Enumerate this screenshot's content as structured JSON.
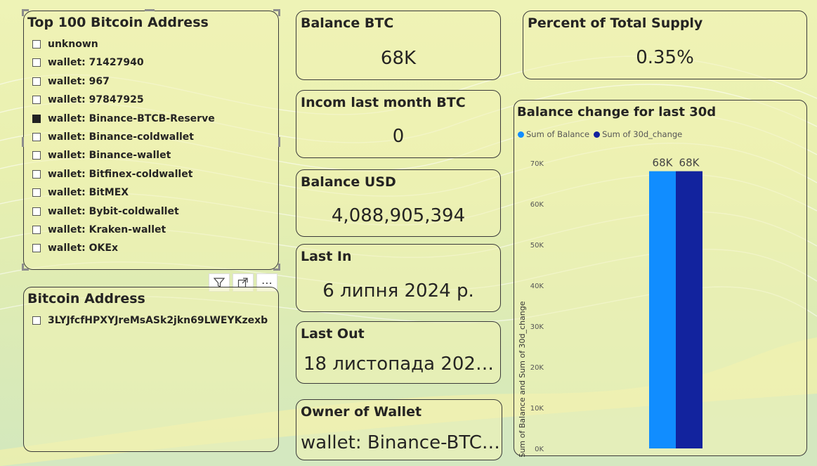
{
  "slicer_top100": {
    "title": "Top 100 Bitcoin Address",
    "items": [
      {
        "label": "unknown",
        "checked": false
      },
      {
        "label": "wallet: 71427940",
        "checked": false
      },
      {
        "label": "wallet: 967",
        "checked": false
      },
      {
        "label": "wallet: 97847925",
        "checked": false
      },
      {
        "label": "wallet: Binance-BTCB-Reserve",
        "checked": true
      },
      {
        "label": "wallet: Binance-coldwallet",
        "checked": false
      },
      {
        "label": "wallet: Binance-wallet",
        "checked": false
      },
      {
        "label": "wallet: Bitfinex-coldwallet",
        "checked": false
      },
      {
        "label": "wallet: BitMEX",
        "checked": false
      },
      {
        "label": "wallet: Bybit-coldwallet",
        "checked": false
      },
      {
        "label": "wallet: Kraken-wallet",
        "checked": false
      },
      {
        "label": "wallet: OKEx",
        "checked": false
      }
    ]
  },
  "visual_header": {
    "filter_icon": "filter-icon",
    "focus_icon": "focus-mode-icon",
    "more_label": "⋯"
  },
  "slicer_address": {
    "title": "Bitcoin Address",
    "items": [
      {
        "label": "3LYJfcfHPXYJreMsASk2jkn69LWEYKzexb",
        "checked": false
      }
    ]
  },
  "kpis": {
    "balance_btc": {
      "title": "Balance BTC",
      "value": "68K"
    },
    "income_last_month": {
      "title": "Incom last month BTC",
      "value": "0"
    },
    "balance_usd": {
      "title": "Balance USD",
      "value": "4,088,905,394"
    },
    "last_in": {
      "title": "Last In",
      "value": "6 липня 2024 р."
    },
    "last_out": {
      "title": "Last Out",
      "value": "18 листопада 202…"
    },
    "owner": {
      "title": "Owner of Wallet",
      "value": "wallet: Binance-BTC…"
    },
    "percent_supply": {
      "title": "Percent of Total Supply",
      "value": "0.35%"
    }
  },
  "chart_data": {
    "type": "bar",
    "title": "Balance change for last 30d",
    "ylabel": "Sum of Balance and Sum of 30d_change",
    "xlabel": "",
    "ylim": [
      0,
      70000
    ],
    "yticks": [
      0,
      10000,
      20000,
      30000,
      40000,
      50000,
      60000,
      70000
    ],
    "ytick_labels": [
      "0K",
      "10K",
      "20K",
      "30K",
      "40K",
      "50K",
      "60K",
      "70K"
    ],
    "categories": [
      ""
    ],
    "series": [
      {
        "name": "Sum of Balance",
        "values": [
          68000
        ],
        "data_label": "68K",
        "color": "#118dff"
      },
      {
        "name": "Sum of 30d_change",
        "values": [
          68000
        ],
        "data_label": "68K",
        "color": "#12239e"
      }
    ],
    "legend": "top-left",
    "grid": false
  },
  "colors": {
    "bar_balance": "#118dff",
    "bar_change": "#12239e",
    "card_border": "#3a3a3a"
  }
}
